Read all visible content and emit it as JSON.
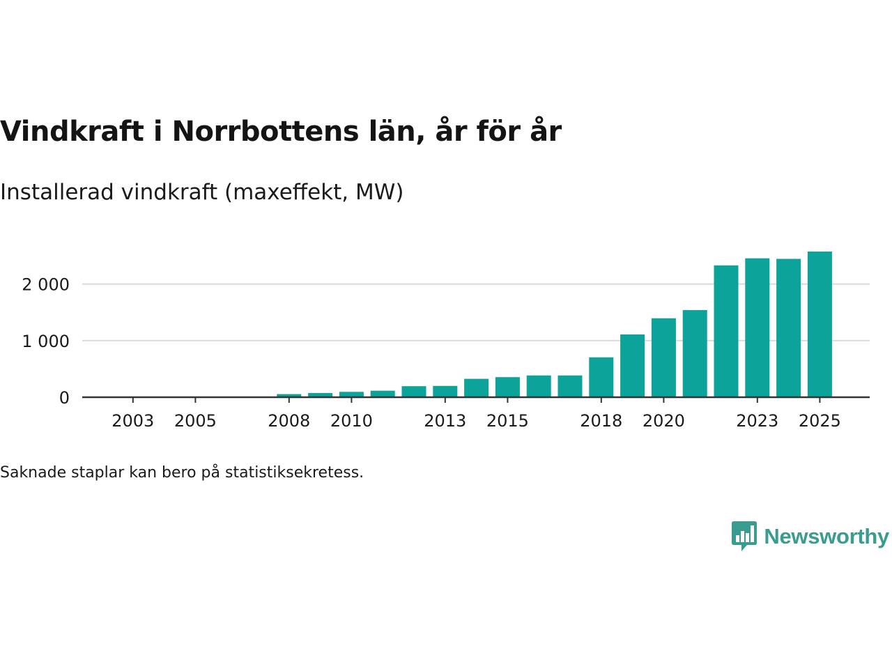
{
  "colors": {
    "bar": "#0ca49a",
    "grid": "#d9d9d9",
    "axis": "#333333",
    "text": "#1a1a1a",
    "brand": "#3a9b8f"
  },
  "chart_data": {
    "type": "bar",
    "title": "Vindkraft i Norrbottens län, år för år",
    "subtitle": "Installerad vindkraft (maxeffekt, MW)",
    "xlabel": "",
    "ylabel": "",
    "ylim": [
      0,
      2700
    ],
    "grid": true,
    "legend": "none",
    "categories": [
      "2002",
      "2003",
      "2004",
      "2005",
      "2006",
      "2007",
      "2008",
      "2009",
      "2010",
      "2011",
      "2012",
      "2013",
      "2014",
      "2015",
      "2016",
      "2017",
      "2018",
      "2019",
      "2020",
      "2021",
      "2022",
      "2023",
      "2024",
      "2025"
    ],
    "values": [
      0,
      0,
      2,
      10,
      10,
      10,
      55,
      75,
      95,
      115,
      195,
      200,
      325,
      355,
      385,
      385,
      705,
      1110,
      1395,
      1540,
      2330,
      2455,
      2445,
      2575
    ],
    "x_tick_labels": [
      "2003",
      "2005",
      "2008",
      "2010",
      "2013",
      "2015",
      "2018",
      "2020",
      "2023",
      "2025"
    ],
    "y_ticks": [
      0,
      1000,
      2000
    ],
    "y_tick_labels": [
      "0",
      "1 000",
      "2 000"
    ]
  },
  "footnote": "Saknade staplar kan bero på statistiksekretess.",
  "brand": {
    "name": "Newsworthy",
    "logo_icon": "bar-chart-speech-bubble-icon"
  }
}
